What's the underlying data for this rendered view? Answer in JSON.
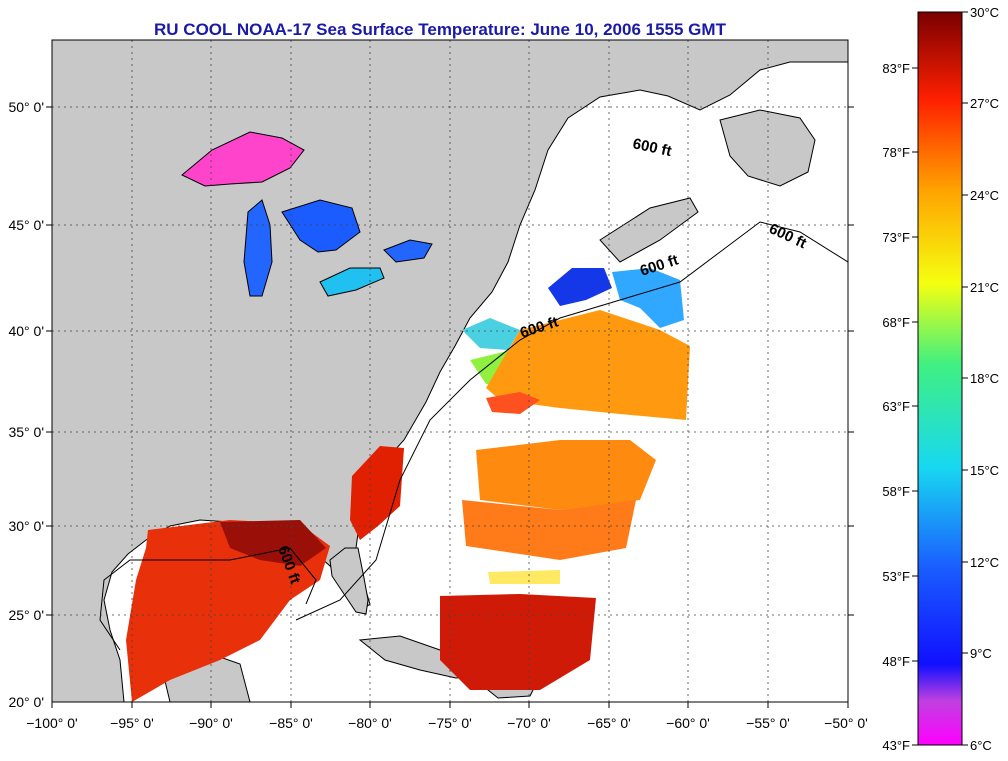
{
  "title": "RU COOL  NOAA-17  Sea Surface Temperature:  June 10, 2006 1555 GMT",
  "colors": {
    "title": "#1a1aa8",
    "land": "#c8c8c8",
    "water": "#ffffff"
  },
  "lat_labels": [
    "50° 0'",
    "45° 0'",
    "40° 0'",
    "35° 0'",
    "30° 0'",
    "25° 0'",
    "20° 0'"
  ],
  "lon_labels": [
    "−100° 0'",
    "−95° 0'",
    "−90° 0'",
    "−85° 0'",
    "−80° 0'",
    "−75° 0'",
    "−70° 0'",
    "−65° 0'",
    "−60° 0'",
    "−55° 0'",
    "−50° 0'"
  ],
  "contour_labels": [
    "600 ft",
    "600 ft",
    "600 ft",
    "600 ft",
    "600 ft"
  ],
  "colorbar": {
    "celsius": [
      "30°C",
      "27°C",
      "24°C",
      "21°C",
      "18°C",
      "15°C",
      "12°C",
      "9°C",
      "6°C"
    ],
    "fahrenheit": [
      "83°F",
      "78°F",
      "73°F",
      "68°F",
      "63°F",
      "58°F",
      "53°F",
      "48°F",
      "43°F"
    ]
  }
}
